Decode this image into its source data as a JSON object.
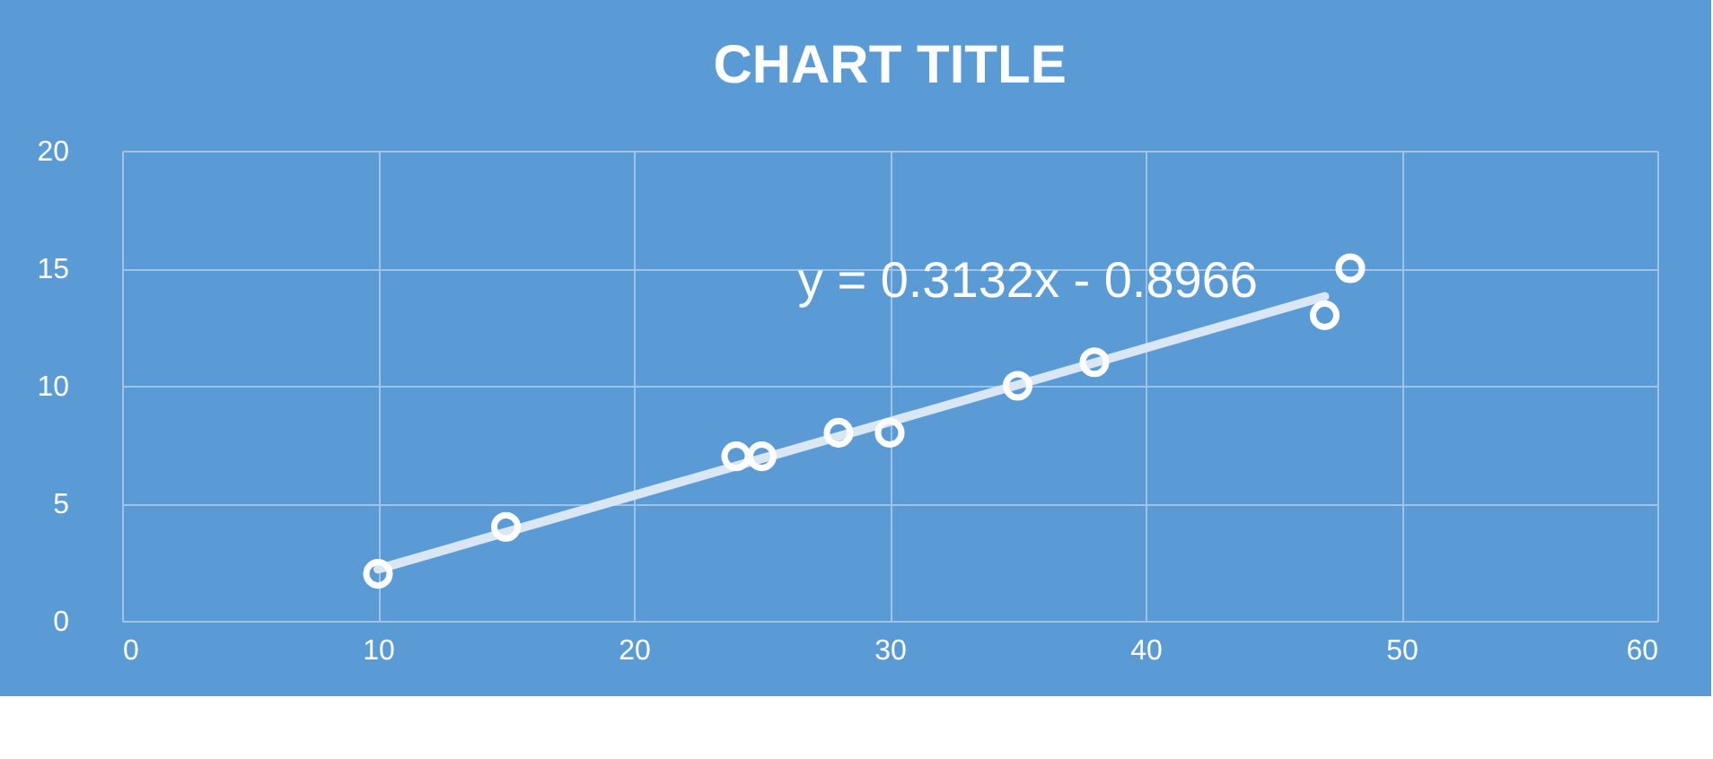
{
  "chart_data": {
    "type": "scatter",
    "title": "CHART TITLE",
    "x": [
      10,
      15,
      24,
      25,
      28,
      30,
      35,
      38,
      47,
      48
    ],
    "series": [
      {
        "color": "#ffffff",
        "marker": "circle",
        "values": [
          2,
          4,
          7,
          7,
          8,
          8,
          10,
          11,
          13,
          15
        ]
      },
      {
        "type": "line",
        "color": "#d9e6f4",
        "line_style": "solid",
        "x": [
          10,
          47
        ],
        "values": [
          2.2,
          13.8
        ]
      }
    ],
    "xlim": [
      0,
      60
    ],
    "xticks": [
      0,
      10,
      20,
      30,
      40,
      50,
      60
    ],
    "ylim": [
      0,
      20
    ],
    "yticks": [
      0,
      5,
      10,
      15,
      20
    ],
    "grid": true,
    "annotations": [
      "y = 0.3132x - 0.8966"
    ]
  }
}
